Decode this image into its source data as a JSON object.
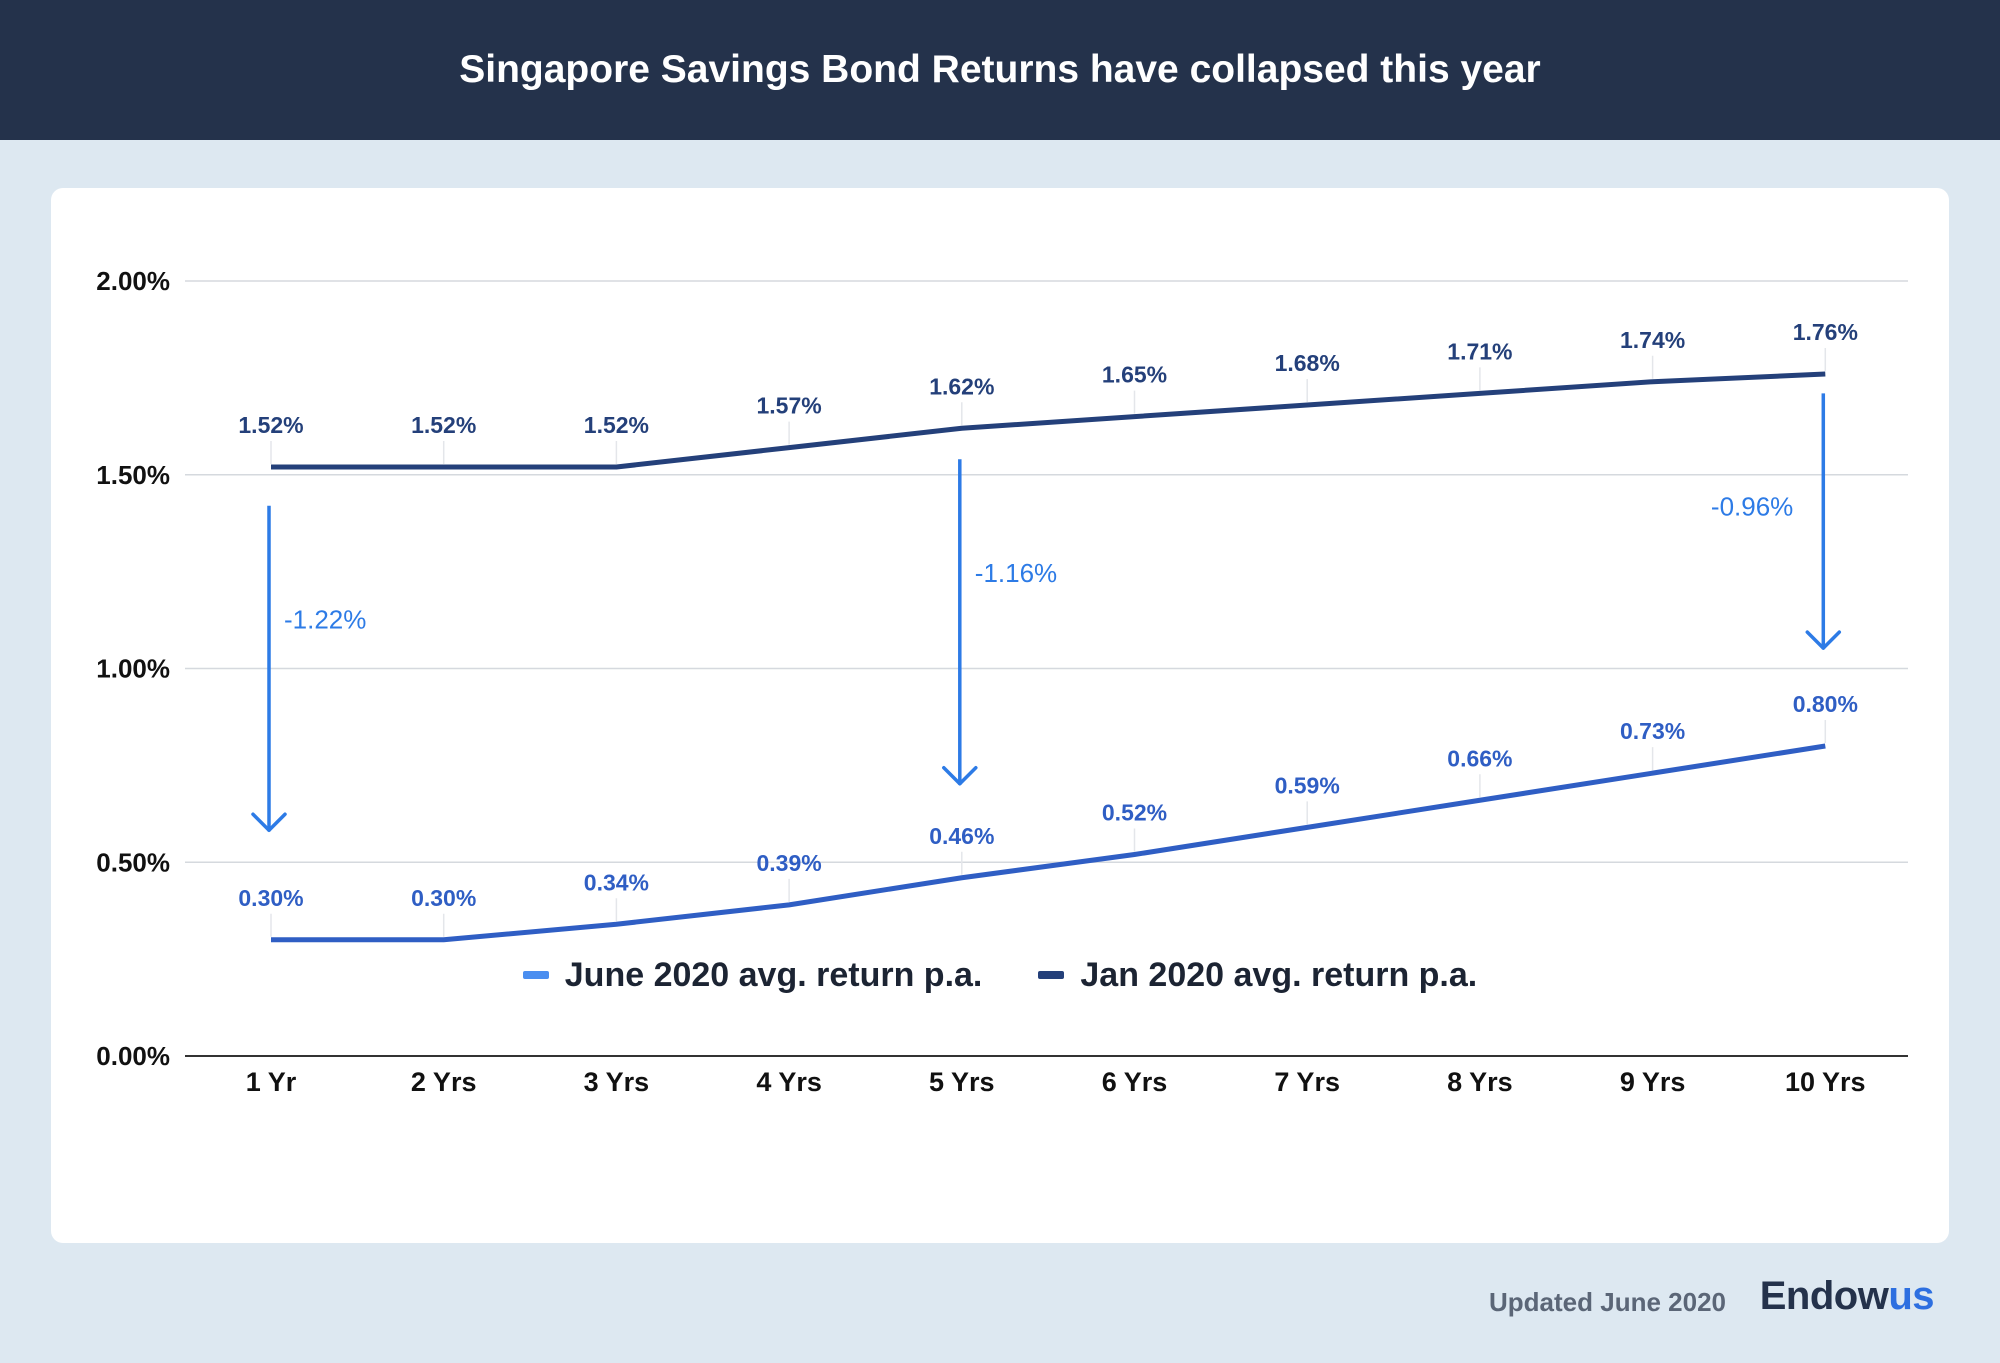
{
  "header": {
    "title": "Singapore Savings Bond Returns have collapsed this year"
  },
  "chart_data": {
    "type": "line",
    "title": "Singapore Savings Bond Returns have collapsed this year",
    "xlabel": "",
    "ylabel": "",
    "categories": [
      "1 Yr",
      "2 Yrs",
      "3 Yrs",
      "4 Yrs",
      "5 Yrs",
      "6 Yrs",
      "7 Yrs",
      "8 Yrs",
      "9 Yrs",
      "10 Yrs"
    ],
    "ylim": [
      0,
      2
    ],
    "yticks": [
      0,
      0.5,
      1,
      1.5,
      2
    ],
    "ytick_labels": [
      "0.00%",
      "0.50%",
      "1.00%",
      "1.50%",
      "2.00%"
    ],
    "grid": true,
    "legend_position": "bottom",
    "series": [
      {
        "name": "June 2020 avg. return p.a.",
        "color": "#2f5ec4",
        "legend_color": "#4a8ef0",
        "values": [
          0.3,
          0.3,
          0.34,
          0.39,
          0.46,
          0.52,
          0.59,
          0.66,
          0.73,
          0.8
        ],
        "labels": [
          "0.30%",
          "0.30%",
          "0.34%",
          "0.39%",
          "0.46%",
          "0.52%",
          "0.59%",
          "0.66%",
          "0.73%",
          "0.80%"
        ]
      },
      {
        "name": "Jan 2020 avg. return p.a.",
        "color": "#24407a",
        "legend_color": "#24407a",
        "values": [
          1.52,
          1.52,
          1.52,
          1.57,
          1.62,
          1.65,
          1.68,
          1.71,
          1.74,
          1.76
        ],
        "labels": [
          "1.52%",
          "1.52%",
          "1.52%",
          "1.57%",
          "1.62%",
          "1.65%",
          "1.68%",
          "1.71%",
          "1.74%",
          "1.76%"
        ]
      }
    ],
    "annotations": [
      {
        "category": "1 Yr",
        "from": 1.42,
        "to": 0.58,
        "text": "-1.22%",
        "side": "right"
      },
      {
        "category": "5 Yrs",
        "from": 1.54,
        "to": 0.7,
        "text": "-1.16%",
        "side": "right"
      },
      {
        "category": "10 Yrs",
        "from": 1.71,
        "to": 1.05,
        "text": "-0.96%",
        "side": "left"
      }
    ],
    "annotation_color": "#2d7be6"
  },
  "footer": {
    "note": "Updated June 2020",
    "brand_main": "Endow",
    "brand_accent": "us"
  }
}
